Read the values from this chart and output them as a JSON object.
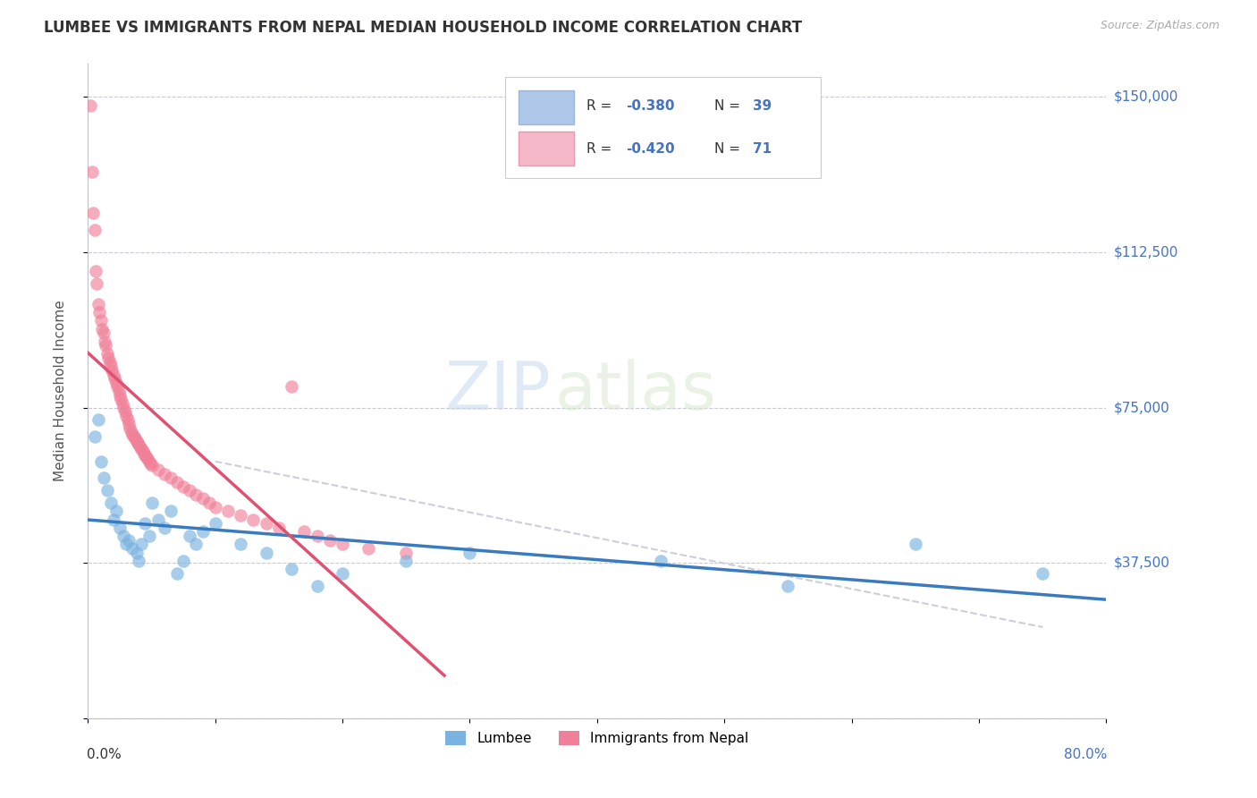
{
  "title": "LUMBEE VS IMMIGRANTS FROM NEPAL MEDIAN HOUSEHOLD INCOME CORRELATION CHART",
  "source": "Source: ZipAtlas.com",
  "ylabel": "Median Household Income",
  "ytick_vals": [
    0,
    37500,
    75000,
    112500,
    150000
  ],
  "ytick_labels": [
    "",
    "$37,500",
    "$75,000",
    "$112,500",
    "$150,000"
  ],
  "xmin": 0.0,
  "xmax": 0.8,
  "ymin": 15000,
  "ymax": 158000,
  "watermark_zip": "ZIP",
  "watermark_atlas": "atlas",
  "lumbee_color": "#7ab3e0",
  "nepal_color": "#f08098",
  "lumbee_line_color": "#3a7abf",
  "nepal_line_color": "#e05070",
  "ref_line_color": "#c8c8d8",
  "legend_blue_color": "#aec6e8",
  "legend_pink_color": "#f4b8c8",
  "lumbee_x": [
    0.005,
    0.008,
    0.01,
    0.012,
    0.015,
    0.018,
    0.02,
    0.022,
    0.025,
    0.028,
    0.03,
    0.032,
    0.035,
    0.038,
    0.04,
    0.042,
    0.045,
    0.048,
    0.05,
    0.055,
    0.06,
    0.065,
    0.07,
    0.075,
    0.08,
    0.085,
    0.09,
    0.1,
    0.12,
    0.14,
    0.16,
    0.18,
    0.2,
    0.25,
    0.3,
    0.45,
    0.55,
    0.65,
    0.75
  ],
  "lumbee_y": [
    68000,
    72000,
    62000,
    58000,
    55000,
    52000,
    48000,
    50000,
    46000,
    44000,
    42000,
    43000,
    41000,
    40000,
    38000,
    42000,
    47000,
    44000,
    52000,
    48000,
    46000,
    50000,
    35000,
    38000,
    44000,
    42000,
    45000,
    47000,
    42000,
    40000,
    36000,
    32000,
    35000,
    38000,
    40000,
    38000,
    32000,
    42000,
    35000
  ],
  "nepal_x": [
    0.002,
    0.003,
    0.004,
    0.005,
    0.006,
    0.007,
    0.008,
    0.009,
    0.01,
    0.011,
    0.012,
    0.013,
    0.014,
    0.015,
    0.016,
    0.017,
    0.018,
    0.019,
    0.02,
    0.021,
    0.022,
    0.023,
    0.024,
    0.025,
    0.026,
    0.027,
    0.028,
    0.029,
    0.03,
    0.031,
    0.032,
    0.033,
    0.034,
    0.035,
    0.036,
    0.037,
    0.038,
    0.039,
    0.04,
    0.041,
    0.042,
    0.043,
    0.044,
    0.045,
    0.046,
    0.047,
    0.048,
    0.049,
    0.05,
    0.055,
    0.06,
    0.065,
    0.07,
    0.075,
    0.08,
    0.085,
    0.09,
    0.095,
    0.1,
    0.11,
    0.12,
    0.13,
    0.14,
    0.15,
    0.16,
    0.17,
    0.18,
    0.19,
    0.2,
    0.22,
    0.25
  ],
  "nepal_y": [
    148000,
    132000,
    122000,
    118000,
    108000,
    105000,
    100000,
    98000,
    96000,
    94000,
    93000,
    91000,
    90000,
    88000,
    87000,
    86000,
    85000,
    84000,
    83000,
    82000,
    81000,
    80000,
    79000,
    78000,
    77000,
    76000,
    75000,
    74000,
    73000,
    72000,
    71000,
    70000,
    69000,
    68500,
    68000,
    67500,
    67000,
    66500,
    66000,
    65500,
    65000,
    64500,
    64000,
    63500,
    63000,
    62500,
    62000,
    61500,
    61000,
    60000,
    59000,
    58000,
    57000,
    56000,
    55000,
    54000,
    53000,
    52000,
    51000,
    50000,
    49000,
    48000,
    47000,
    46000,
    80000,
    45000,
    44000,
    43000,
    42000,
    41000,
    40000
  ]
}
